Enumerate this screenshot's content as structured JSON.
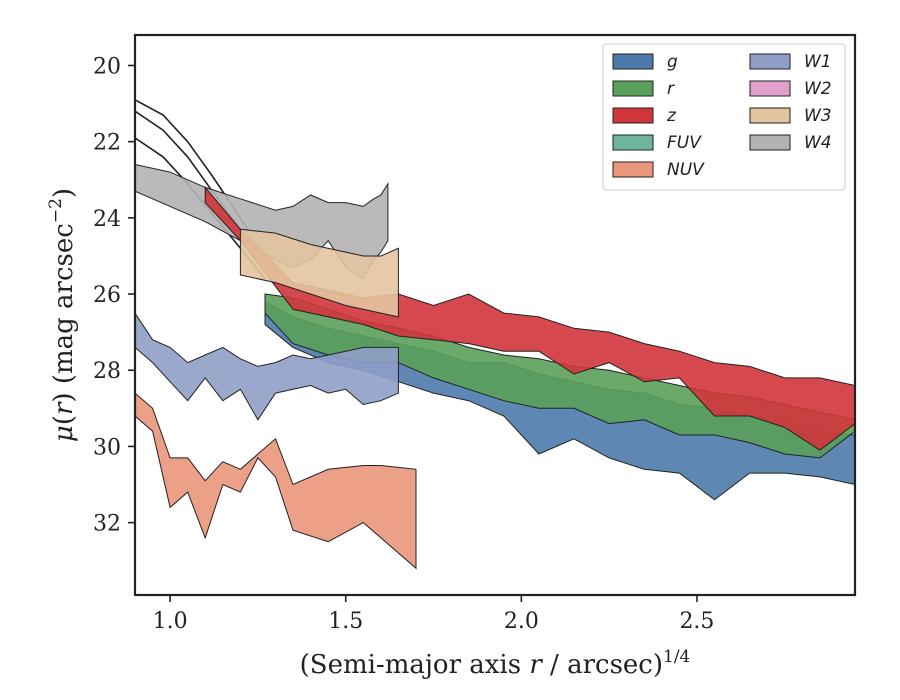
{
  "chart_data": {
    "type": "area",
    "xlabel": "(Semi-major axis r / arcsec)^1/4",
    "ylabel": "μ(r) (mag arcsec^−2)",
    "xlim": [
      0.9,
      2.95
    ],
    "ylim": [
      33.9,
      19.2
    ],
    "y_inverted": true,
    "x_ticks": [
      "1.0",
      "1.5",
      "2.0",
      "2.5"
    ],
    "x_tick_values": [
      1.0,
      1.5,
      2.0,
      2.5
    ],
    "y_ticks": [
      "20",
      "22",
      "24",
      "26",
      "28",
      "30",
      "32"
    ],
    "y_tick_values": [
      20,
      22,
      24,
      26,
      28,
      30,
      32
    ],
    "legend_position": "upper right",
    "black_curves": [
      {
        "x": [
          0.9,
          0.98,
          1.05,
          1.12,
          1.2,
          1.27
        ],
        "y": [
          20.9,
          21.3,
          22.0,
          22.9,
          24.0,
          25.0
        ]
      },
      {
        "x": [
          0.9,
          0.98,
          1.05,
          1.12,
          1.2,
          1.27
        ],
        "y": [
          21.2,
          21.7,
          22.4,
          23.3,
          24.3,
          25.2
        ]
      },
      {
        "x": [
          0.9,
          0.98,
          1.05,
          1.12,
          1.2,
          1.27
        ],
        "y": [
          21.9,
          22.4,
          23.1,
          23.9,
          24.8,
          25.6
        ]
      }
    ],
    "series": [
      {
        "name": "g",
        "legend_label": "g",
        "color": "#4c7bab",
        "x": [
          1.27,
          1.35,
          1.45,
          1.55,
          1.65,
          1.75,
          1.85,
          1.95,
          2.05,
          2.15,
          2.25,
          2.35,
          2.45,
          2.55,
          2.65,
          2.75,
          2.85,
          2.95
        ],
        "y_upper": [
          26.2,
          26.6,
          26.9,
          27.1,
          27.3,
          27.5,
          27.8,
          27.8,
          28.1,
          28.3,
          28.5,
          28.6,
          28.9,
          29.0,
          29.2,
          29.3,
          29.6,
          29.7
        ],
        "y_lower": [
          26.8,
          27.4,
          27.8,
          28.0,
          28.3,
          28.6,
          28.8,
          29.2,
          30.2,
          29.8,
          30.3,
          30.6,
          30.7,
          31.4,
          30.7,
          30.7,
          30.8,
          31.0
        ]
      },
      {
        "name": "r",
        "legend_label": "r",
        "color": "#5aa05a",
        "x": [
          1.27,
          1.35,
          1.45,
          1.55,
          1.65,
          1.75,
          1.85,
          1.95,
          2.05,
          2.15,
          2.25,
          2.35,
          2.45,
          2.55,
          2.65,
          2.75,
          2.85,
          2.95
        ],
        "y_upper": [
          26.0,
          26.1,
          26.4,
          26.7,
          26.9,
          27.1,
          27.4,
          27.6,
          27.7,
          27.9,
          28.0,
          28.2,
          28.4,
          28.6,
          28.7,
          28.9,
          29.1,
          29.3
        ],
        "y_lower": [
          26.5,
          27.3,
          27.6,
          27.8,
          27.8,
          28.2,
          28.5,
          28.8,
          29.0,
          29.0,
          29.4,
          29.3,
          29.7,
          29.7,
          29.9,
          30.2,
          30.3,
          29.6
        ]
      },
      {
        "name": "z",
        "legend_label": "z",
        "color": "#d0353b",
        "x": [
          1.1,
          1.2,
          1.35,
          1.45,
          1.55,
          1.65,
          1.75,
          1.85,
          1.95,
          2.05,
          2.15,
          2.25,
          2.35,
          2.45,
          2.55,
          2.65,
          2.75,
          2.85,
          2.95
        ],
        "y_upper": [
          23.2,
          24.3,
          25.7,
          25.9,
          26.1,
          26.0,
          26.3,
          26.0,
          26.5,
          26.6,
          26.9,
          27.0,
          27.3,
          27.5,
          27.8,
          27.9,
          28.2,
          28.2,
          28.4
        ],
        "y_lower": [
          23.6,
          24.6,
          26.4,
          26.6,
          26.8,
          27.1,
          27.2,
          27.3,
          27.5,
          27.5,
          28.1,
          27.8,
          28.3,
          28.2,
          29.2,
          29.2,
          29.5,
          30.1,
          29.4
        ]
      },
      {
        "name": "FUV",
        "legend_label": "FUV",
        "color": "#6fb59d",
        "x": [],
        "y_upper": [],
        "y_lower": []
      },
      {
        "name": "NUV",
        "legend_label": "NUV",
        "color": "#e9967a",
        "x": [
          0.9,
          0.95,
          1.0,
          1.05,
          1.1,
          1.15,
          1.2,
          1.25,
          1.3,
          1.35,
          1.45,
          1.55,
          1.6,
          1.7
        ],
        "y_upper": [
          28.6,
          29.0,
          30.3,
          30.3,
          30.9,
          30.4,
          30.6,
          30.2,
          29.8,
          31.0,
          30.6,
          30.5,
          30.5,
          30.6
        ],
        "y_lower": [
          29.2,
          29.6,
          31.6,
          31.2,
          32.4,
          31.0,
          31.2,
          30.3,
          30.8,
          32.2,
          32.5,
          32.0,
          32.4,
          33.2
        ]
      },
      {
        "name": "W1",
        "legend_label": "W1",
        "color": "#8f9fc6",
        "x": [
          0.9,
          0.95,
          1.0,
          1.05,
          1.1,
          1.15,
          1.2,
          1.25,
          1.3,
          1.35,
          1.4,
          1.45,
          1.5,
          1.55,
          1.6,
          1.65
        ],
        "y_upper": [
          26.5,
          27.2,
          27.4,
          27.8,
          27.6,
          27.4,
          27.7,
          27.9,
          27.8,
          27.6,
          27.7,
          27.6,
          27.5,
          27.4,
          27.4,
          27.4
        ],
        "y_lower": [
          27.4,
          27.8,
          28.3,
          28.8,
          28.2,
          28.8,
          28.5,
          29.3,
          28.6,
          28.5,
          28.4,
          28.6,
          28.5,
          28.9,
          28.8,
          28.6
        ]
      },
      {
        "name": "W2",
        "legend_label": "W2",
        "color": "#e0a0cc",
        "x": [],
        "y_upper": [],
        "y_lower": []
      },
      {
        "name": "W3",
        "legend_label": "W3",
        "color": "#e3c4a0",
        "x": [
          1.2,
          1.3,
          1.4,
          1.5,
          1.55,
          1.6,
          1.65
        ],
        "y_upper": [
          24.3,
          24.4,
          24.7,
          24.9,
          25.0,
          25.0,
          24.8
        ],
        "y_lower": [
          25.5,
          25.7,
          26.0,
          26.3,
          26.4,
          26.5,
          26.6
        ]
      },
      {
        "name": "W4",
        "legend_label": "W4",
        "color": "#b3b3b3",
        "x": [
          0.9,
          1.0,
          1.1,
          1.2,
          1.3,
          1.35,
          1.4,
          1.45,
          1.5,
          1.55,
          1.58,
          1.6,
          1.62
        ],
        "y_upper": [
          22.6,
          22.8,
          23.2,
          23.5,
          23.8,
          23.7,
          23.4,
          23.6,
          23.6,
          23.7,
          23.5,
          23.4,
          23.1
        ],
        "y_lower": [
          23.3,
          23.7,
          24.1,
          24.6,
          25.1,
          25.3,
          25.1,
          24.6,
          25.3,
          25.6,
          25.1,
          24.9,
          24.6
        ]
      }
    ]
  }
}
